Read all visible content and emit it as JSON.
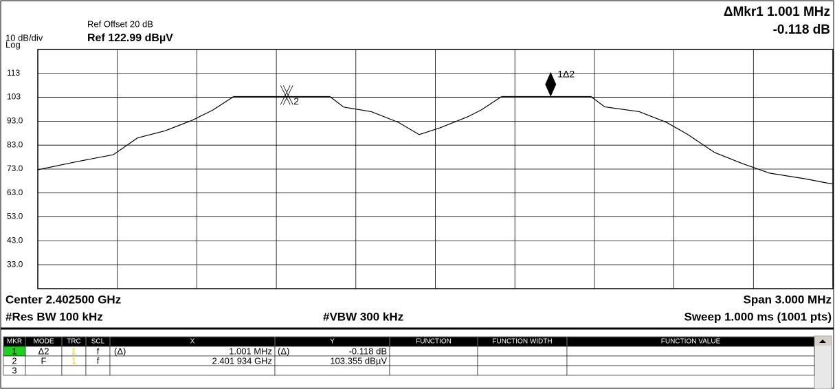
{
  "chart_data": {
    "type": "line",
    "ref_offset": "Ref Offset 20 dB",
    "scale_label": "10 dB/div",
    "ref_level": "Ref 122.99 dBµV",
    "scale_type": "Log",
    "marker_readout": "ΔMkr1 1.001 MHz",
    "marker_delta": "-0.118 dB",
    "center": "Center 2.402500 GHz",
    "span": "Span 3.000 MHz",
    "rbw": "#Res BW 100 kHz",
    "vbw": "#VBW 300 kHz",
    "sweep": "Sweep  1.000 ms (1001 pts)",
    "x": [
      2.401,
      2.401143,
      2.401285,
      2.401376,
      2.40148,
      2.401583,
      2.401661,
      2.401739,
      2.401895,
      2.40205,
      2.402102,
      2.402154,
      2.402258,
      2.402361,
      2.402439,
      2.402517,
      2.402621,
      2.402673,
      2.40275,
      2.402932,
      2.403087,
      2.403139,
      2.403269,
      2.403372,
      2.40345,
      2.403554,
      2.403658,
      2.403761,
      2.403891,
      2.404
    ],
    "series": [
      {
        "color": "#000000",
        "values": [
          72.7,
          76,
          79,
          86,
          89,
          93.4,
          97.7,
          103.3,
          103.3,
          103.3,
          103.3,
          98.9,
          97,
          92.5,
          87.4,
          90.2,
          94.8,
          97.7,
          103.3,
          103.3,
          103.3,
          99,
          97,
          92.5,
          87.6,
          79.9,
          75.3,
          71.3,
          69,
          66.7
        ]
      }
    ],
    "markers": [
      {
        "label": "2",
        "x": 2.401934,
        "y": 103.355
      },
      {
        "label": "1Δ2",
        "x": 2.402935,
        "y": 103.237
      }
    ],
    "xlim": [
      2.401,
      2.404
    ],
    "xticks": [
      2.401,
      2.4013,
      2.4016,
      2.4019,
      2.4022,
      2.4025,
      2.4028,
      2.4031,
      2.4034,
      2.4037,
      2.404
    ],
    "ylim": [
      22.99,
      122.99
    ],
    "yticks": [
      113,
      103,
      {
        "value": 93,
        "label": "93.0"
      },
      {
        "value": 83,
        "label": "83.0"
      },
      {
        "value": 73,
        "label": "73.0"
      },
      {
        "value": 63,
        "label": "63.0"
      },
      {
        "value": 53,
        "label": "53.0"
      },
      {
        "value": 43,
        "label": "43.0"
      },
      {
        "value": 33,
        "label": "33.0"
      }
    ],
    "grid": true
  },
  "marker_table": {
    "headers": {
      "mkr": "MKR",
      "mode": "MODE",
      "trc": "TRC",
      "scl": "SCL",
      "x": "X",
      "y": "Y",
      "function": "FUNCTION",
      "function_width": "FUNCTION WIDTH",
      "function_value": "FUNCTION VALUE"
    },
    "rows": [
      {
        "mkr": "1",
        "mode": "Δ2",
        "trc": "1",
        "scl": "f",
        "x_prefix": "(Δ)",
        "x": "1.001 MHz",
        "y_prefix": "(Δ)",
        "y": "-0.118 dB"
      },
      {
        "mkr": "2",
        "mode": "F",
        "trc": "1",
        "scl": "f",
        "x": "2.401 934 GHz",
        "y": "103.355 dBµV"
      },
      {
        "mkr": "3"
      }
    ]
  }
}
